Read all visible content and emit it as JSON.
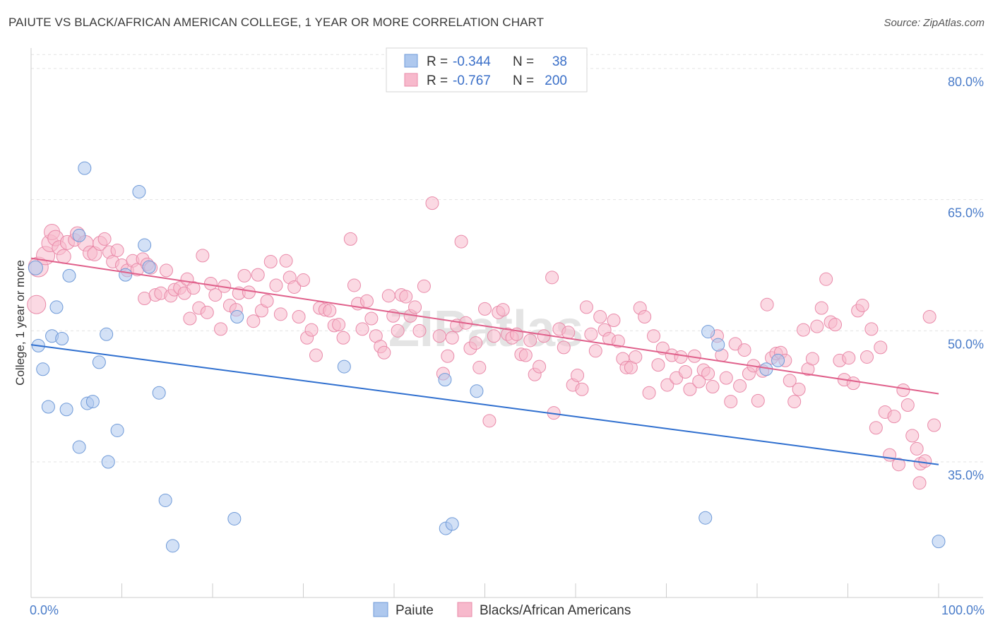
{
  "title": "PAIUTE VS BLACK/AFRICAN AMERICAN COLLEGE, 1 YEAR OR MORE CORRELATION CHART",
  "source": "Source: ZipAtlas.com",
  "watermark": "ZIPatlas",
  "colors": {
    "paiute_fill": "#aec8ee",
    "paiute_stroke": "#6f9ad8",
    "paiute_line": "#2f6fcf",
    "black_fill": "#f7b9cc",
    "black_stroke": "#e98aa9",
    "black_line": "#e0608b",
    "tick_label": "#4a7cc9",
    "grid": "#e3e3e3"
  },
  "legend": {
    "rows": [
      {
        "r_label": "R =",
        "r_value": "-0.344",
        "n_label": "N =",
        "n_value": "38"
      },
      {
        "r_label": "R =",
        "r_value": "-0.767",
        "n_label": "N =",
        "n_value": "200"
      }
    ]
  },
  "chart_data": {
    "type": "scatter",
    "title": "PAIUTE VS BLACK/AFRICAN AMERICAN COLLEGE, 1 YEAR OR MORE CORRELATION CHART",
    "xlabel": "",
    "ylabel": "College, 1 year or more",
    "xlim": [
      0,
      100
    ],
    "ylim": [
      22,
      82
    ],
    "x_tick_labels": [
      "0.0%",
      "100.0%"
    ],
    "y_ticks": [
      35,
      50,
      65,
      80
    ],
    "y_tick_labels": [
      "35.0%",
      "50.0%",
      "65.0%",
      "80.0%"
    ],
    "grid": true,
    "legend_position": "top-center",
    "series": [
      {
        "name": "Paiute",
        "R": -0.344,
        "N": 38,
        "trend": {
          "x": [
            0,
            100
          ],
          "y": [
            48.4,
            34.7
          ]
        },
        "points": [
          [
            0.5,
            57.2,
            10
          ],
          [
            0.8,
            48.3,
            9
          ],
          [
            1.3,
            45.6,
            9
          ],
          [
            1.9,
            41.3,
            9
          ],
          [
            2.3,
            49.4,
            9
          ],
          [
            2.8,
            52.7,
            9
          ],
          [
            3.4,
            49.1,
            9
          ],
          [
            3.9,
            41.0,
            9
          ],
          [
            4.2,
            56.3,
            9
          ],
          [
            5.3,
            60.9,
            9
          ],
          [
            5.3,
            36.7,
            9
          ],
          [
            5.9,
            68.6,
            9
          ],
          [
            6.2,
            41.7,
            9
          ],
          [
            6.8,
            41.9,
            9
          ],
          [
            7.5,
            46.4,
            9
          ],
          [
            8.3,
            49.6,
            9
          ],
          [
            8.5,
            35.0,
            9
          ],
          [
            9.5,
            38.6,
            9
          ],
          [
            10.4,
            56.4,
            9
          ],
          [
            11.9,
            65.9,
            9
          ],
          [
            12.5,
            59.8,
            9
          ],
          [
            13.0,
            57.3,
            9
          ],
          [
            14.1,
            42.9,
            9
          ],
          [
            14.8,
            30.6,
            9
          ],
          [
            15.6,
            25.4,
            9
          ],
          [
            22.4,
            28.5,
            9
          ],
          [
            22.7,
            51.6,
            9
          ],
          [
            34.5,
            45.9,
            9
          ],
          [
            45.6,
            44.4,
            9
          ],
          [
            45.7,
            27.4,
            9
          ],
          [
            46.4,
            27.9,
            9
          ],
          [
            49.1,
            43.1,
            9
          ],
          [
            74.3,
            28.6,
            9
          ],
          [
            74.6,
            49.9,
            9
          ],
          [
            75.7,
            48.4,
            9
          ],
          [
            81.0,
            45.6,
            9
          ],
          [
            82.3,
            46.6,
            9
          ],
          [
            100.0,
            25.9,
            9
          ]
        ]
      },
      {
        "name": "Blacks/African Americans",
        "R": -0.767,
        "N": 200,
        "trend": {
          "x": [
            0,
            100
          ],
          "y": [
            58.3,
            42.8
          ]
        },
        "points": [
          [
            0.6,
            53.0,
            13
          ],
          [
            0.8,
            57.3,
            14
          ],
          [
            1.6,
            58.6,
            13
          ],
          [
            2.1,
            60.0,
            12
          ],
          [
            2.3,
            61.3,
            11
          ],
          [
            2.7,
            60.6,
            11
          ],
          [
            3.1,
            59.5,
            10
          ],
          [
            3.6,
            58.5,
            10
          ],
          [
            4.0,
            60.1,
            10
          ],
          [
            4.8,
            60.4,
            9
          ],
          [
            5.1,
            61.1,
            10
          ],
          [
            6.0,
            60.0,
            11
          ],
          [
            6.5,
            58.9,
            10
          ],
          [
            7.0,
            58.8,
            10
          ],
          [
            7.6,
            60.0,
            10
          ],
          [
            8.1,
            60.5,
            9
          ],
          [
            8.6,
            59.0,
            9
          ],
          [
            9.0,
            57.9,
            9
          ],
          [
            9.5,
            59.2,
            9
          ],
          [
            10.0,
            57.5,
            9
          ],
          [
            10.6,
            56.9,
            9
          ],
          [
            11.2,
            58.0,
            9
          ],
          [
            11.7,
            57.0,
            9
          ],
          [
            12.3,
            58.2,
            9
          ],
          [
            12.8,
            57.6,
            9
          ],
          [
            12.5,
            53.7,
            9
          ],
          [
            13.2,
            57.2,
            9
          ],
          [
            13.7,
            54.1,
            9
          ],
          [
            14.3,
            54.3,
            9
          ],
          [
            14.9,
            56.9,
            9
          ],
          [
            15.4,
            54.0,
            9
          ],
          [
            15.8,
            54.7,
            9
          ],
          [
            16.4,
            54.9,
            9
          ],
          [
            16.9,
            54.3,
            9
          ],
          [
            17.2,
            55.9,
            9
          ],
          [
            17.5,
            51.4,
            9
          ],
          [
            17.9,
            54.9,
            9
          ],
          [
            18.5,
            52.6,
            9
          ],
          [
            18.9,
            58.6,
            9
          ],
          [
            19.4,
            52.1,
            9
          ],
          [
            19.8,
            55.4,
            9
          ],
          [
            20.3,
            54.1,
            9
          ],
          [
            20.9,
            50.2,
            9
          ],
          [
            21.3,
            55.1,
            9
          ],
          [
            21.9,
            52.9,
            9
          ],
          [
            22.6,
            52.4,
            9
          ],
          [
            22.9,
            54.3,
            9
          ],
          [
            23.5,
            56.3,
            9
          ],
          [
            24.0,
            54.4,
            9
          ],
          [
            24.5,
            51.1,
            9
          ],
          [
            25.0,
            56.4,
            9
          ],
          [
            25.4,
            52.3,
            9
          ],
          [
            26.0,
            53.4,
            9
          ],
          [
            26.4,
            57.9,
            9
          ],
          [
            27.0,
            55.2,
            9
          ],
          [
            27.5,
            51.9,
            9
          ],
          [
            28.1,
            58.0,
            9
          ],
          [
            28.5,
            56.1,
            9
          ],
          [
            29.0,
            55.0,
            9
          ],
          [
            29.5,
            51.6,
            9
          ],
          [
            30.0,
            55.8,
            9
          ],
          [
            30.4,
            49.2,
            9
          ],
          [
            30.9,
            50.1,
            9
          ],
          [
            31.4,
            47.2,
            9
          ],
          [
            31.8,
            52.6,
            9
          ],
          [
            32.4,
            52.4,
            9
          ],
          [
            32.9,
            52.3,
            9
          ],
          [
            33.4,
            50.6,
            9
          ],
          [
            33.9,
            50.7,
            9
          ],
          [
            34.4,
            49.2,
            9
          ],
          [
            35.2,
            60.5,
            9
          ],
          [
            35.6,
            55.2,
            9
          ],
          [
            36.0,
            53.1,
            9
          ],
          [
            36.5,
            50.2,
            9
          ],
          [
            37.0,
            53.4,
            9
          ],
          [
            37.5,
            51.4,
            9
          ],
          [
            38.0,
            49.4,
            9
          ],
          [
            38.5,
            48.2,
            9
          ],
          [
            38.9,
            47.5,
            9
          ],
          [
            39.4,
            54.0,
            9
          ],
          [
            39.9,
            51.7,
            9
          ],
          [
            40.4,
            50.0,
            9
          ],
          [
            40.8,
            54.1,
            9
          ],
          [
            41.3,
            53.9,
            9
          ],
          [
            41.8,
            51.7,
            9
          ],
          [
            42.3,
            52.7,
            9
          ],
          [
            42.8,
            50.0,
            9
          ],
          [
            43.3,
            55.1,
            9
          ],
          [
            44.2,
            64.6,
            9
          ],
          [
            45.0,
            49.4,
            9
          ],
          [
            45.4,
            45.1,
            9
          ],
          [
            45.9,
            47.1,
            9
          ],
          [
            46.4,
            49.2,
            9
          ],
          [
            46.9,
            50.6,
            9
          ],
          [
            47.4,
            60.2,
            9
          ],
          [
            47.9,
            50.9,
            9
          ],
          [
            48.4,
            48.0,
            9
          ],
          [
            49.0,
            48.6,
            9
          ],
          [
            49.4,
            45.8,
            9
          ],
          [
            50.0,
            52.5,
            9
          ],
          [
            50.5,
            39.7,
            9
          ],
          [
            51.0,
            49.4,
            9
          ],
          [
            51.5,
            52.1,
            9
          ],
          [
            52.0,
            52.4,
            9
          ],
          [
            52.5,
            49.6,
            9
          ],
          [
            53.0,
            49.2,
            9
          ],
          [
            53.5,
            49.6,
            9
          ],
          [
            54.0,
            47.3,
            9
          ],
          [
            54.5,
            47.2,
            9
          ],
          [
            55.0,
            48.9,
            9
          ],
          [
            55.5,
            45.0,
            9
          ],
          [
            56.0,
            45.9,
            9
          ],
          [
            56.5,
            49.4,
            9
          ],
          [
            57.4,
            56.1,
            9
          ],
          [
            57.6,
            40.6,
            9
          ],
          [
            58.2,
            50.2,
            9
          ],
          [
            58.7,
            48.1,
            9
          ],
          [
            59.2,
            49.8,
            9
          ],
          [
            59.7,
            43.8,
            9
          ],
          [
            60.2,
            44.9,
            9
          ],
          [
            60.7,
            43.3,
            9
          ],
          [
            61.2,
            52.7,
            9
          ],
          [
            61.7,
            49.6,
            9
          ],
          [
            62.2,
            47.7,
            9
          ],
          [
            62.7,
            51.6,
            9
          ],
          [
            63.2,
            50.1,
            9
          ],
          [
            63.7,
            49.1,
            9
          ],
          [
            64.2,
            51.2,
            9
          ],
          [
            64.7,
            48.8,
            9
          ],
          [
            65.2,
            46.8,
            9
          ],
          [
            65.6,
            45.8,
            9
          ],
          [
            66.1,
            45.8,
            9
          ],
          [
            66.6,
            47.0,
            9
          ],
          [
            67.1,
            52.6,
            9
          ],
          [
            67.6,
            51.6,
            9
          ],
          [
            68.1,
            42.9,
            9
          ],
          [
            68.6,
            49.4,
            9
          ],
          [
            69.1,
            46.1,
            9
          ],
          [
            69.6,
            48.0,
            9
          ],
          [
            70.1,
            43.8,
            9
          ],
          [
            70.6,
            47.2,
            9
          ],
          [
            71.1,
            44.6,
            9
          ],
          [
            71.6,
            47.0,
            9
          ],
          [
            72.1,
            45.3,
            9
          ],
          [
            72.6,
            43.3,
            9
          ],
          [
            73.1,
            47.1,
            9
          ],
          [
            73.6,
            44.2,
            9
          ],
          [
            74.1,
            45.5,
            9
          ],
          [
            74.6,
            45.1,
            9
          ],
          [
            75.1,
            43.6,
            9
          ],
          [
            75.6,
            49.4,
            9
          ],
          [
            76.1,
            47.2,
            9
          ],
          [
            76.6,
            44.6,
            9
          ],
          [
            77.1,
            41.9,
            9
          ],
          [
            77.6,
            48.5,
            9
          ],
          [
            78.1,
            43.7,
            9
          ],
          [
            78.6,
            47.8,
            9
          ],
          [
            79.1,
            45.1,
            9
          ],
          [
            79.6,
            46.0,
            9
          ],
          [
            80.1,
            42.0,
            9
          ],
          [
            80.6,
            45.4,
            9
          ],
          [
            81.1,
            53.0,
            9
          ],
          [
            81.6,
            46.9,
            9
          ],
          [
            82.1,
            47.4,
            9
          ],
          [
            82.6,
            47.5,
            9
          ],
          [
            83.1,
            46.6,
            9
          ],
          [
            83.6,
            44.3,
            9
          ],
          [
            84.1,
            41.9,
            9
          ],
          [
            84.6,
            43.3,
            9
          ],
          [
            85.1,
            50.1,
            9
          ],
          [
            85.6,
            45.6,
            9
          ],
          [
            86.1,
            46.8,
            9
          ],
          [
            86.6,
            50.5,
            9
          ],
          [
            87.1,
            52.6,
            9
          ],
          [
            87.6,
            55.9,
            9
          ],
          [
            88.1,
            51.0,
            9
          ],
          [
            88.6,
            50.7,
            9
          ],
          [
            89.1,
            46.6,
            9
          ],
          [
            89.6,
            44.4,
            9
          ],
          [
            90.1,
            46.9,
            9
          ],
          [
            90.6,
            44.0,
            9
          ],
          [
            91.1,
            52.3,
            9
          ],
          [
            91.6,
            52.9,
            9
          ],
          [
            92.1,
            47.0,
            9
          ],
          [
            92.6,
            50.2,
            9
          ],
          [
            93.1,
            38.9,
            9
          ],
          [
            93.6,
            48.1,
            9
          ],
          [
            94.1,
            40.7,
            9
          ],
          [
            94.6,
            35.8,
            9
          ],
          [
            95.1,
            40.2,
            9
          ],
          [
            95.6,
            34.7,
            9
          ],
          [
            96.1,
            43.2,
            9
          ],
          [
            96.6,
            41.5,
            9
          ],
          [
            97.1,
            38.0,
            9
          ],
          [
            97.6,
            36.5,
            9
          ],
          [
            98.0,
            34.8,
            9
          ],
          [
            98.5,
            35.1,
            9
          ],
          [
            99.0,
            51.6,
            9
          ],
          [
            99.5,
            39.2,
            9
          ],
          [
            97.9,
            32.6,
            9
          ]
        ]
      }
    ]
  }
}
